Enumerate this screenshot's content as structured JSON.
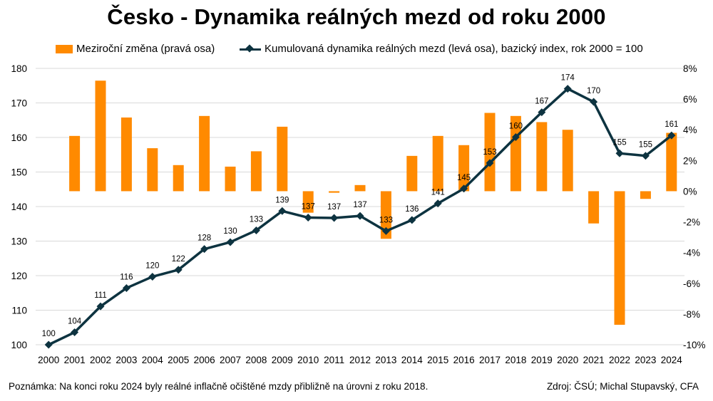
{
  "title": "Česko - Dynamika reálných mezd od roku 2000",
  "note": "Poznámka: Na konci roku 2024 byly reálné inflačně očištěné mzdy přibližně na úrovni z roku 2018.",
  "source": "Zdroj: ČSÚ; Michal Stupavský, CFA",
  "colors": {
    "bar": "#ff8a00",
    "line": "#0d3340",
    "grid": "#d9d9d9"
  },
  "chart_data": {
    "type": "bar",
    "title": "Česko - Dynamika reálných mezd od roku 2000",
    "categories": [
      "2000",
      "2001",
      "2002",
      "2003",
      "2004",
      "2005",
      "2006",
      "2007",
      "2008",
      "2009",
      "2010",
      "2011",
      "2012",
      "2013",
      "2014",
      "2015",
      "2016",
      "2017",
      "2018",
      "2019",
      "2020",
      "2021",
      "2022",
      "2023",
      "2024"
    ],
    "left_axis": {
      "ylim": [
        100,
        180
      ],
      "ticks": [
        "100",
        "110",
        "120",
        "130",
        "140",
        "150",
        "160",
        "170",
        "180"
      ]
    },
    "right_axis": {
      "ylim": [
        -10,
        8
      ],
      "ticks": [
        "-10%",
        "-8%",
        "-6%",
        "-4%",
        "-2%",
        "0%",
        "2%",
        "4%",
        "6%",
        "8%"
      ]
    },
    "grid": true,
    "legend_position": "top",
    "series": [
      {
        "name": "Meziroční změna (pravá osa)",
        "kind": "bar",
        "axis": "right",
        "values": [
          null,
          3.6,
          7.2,
          4.8,
          2.8,
          1.7,
          4.9,
          1.6,
          2.6,
          4.2,
          -1.4,
          -0.1,
          0.4,
          -3.1,
          2.3,
          3.6,
          3.0,
          5.1,
          4.9,
          4.5,
          4.0,
          -2.1,
          -8.7,
          -0.5,
          3.8
        ]
      },
      {
        "name": "Kumulovaná dynamika reálných mezd (levá osa), bazický index, rok 2000 = 100",
        "kind": "line",
        "axis": "left",
        "values": [
          100,
          103.6,
          111.1,
          116.4,
          119.7,
          121.7,
          127.7,
          129.7,
          133.1,
          138.7,
          136.8,
          136.7,
          137.3,
          132.9,
          136.1,
          140.9,
          145.2,
          152.6,
          160.1,
          167.3,
          174.1,
          170.3,
          155.4,
          154.7,
          160.6
        ],
        "labels": [
          "100",
          "104",
          "111",
          "116",
          "120",
          "122",
          "128",
          "130",
          "133",
          "139",
          "137",
          "137",
          "137",
          "133",
          "136",
          "141",
          "145",
          "153",
          "160",
          "167",
          "174",
          "170",
          "155",
          "155",
          "161"
        ]
      }
    ]
  }
}
